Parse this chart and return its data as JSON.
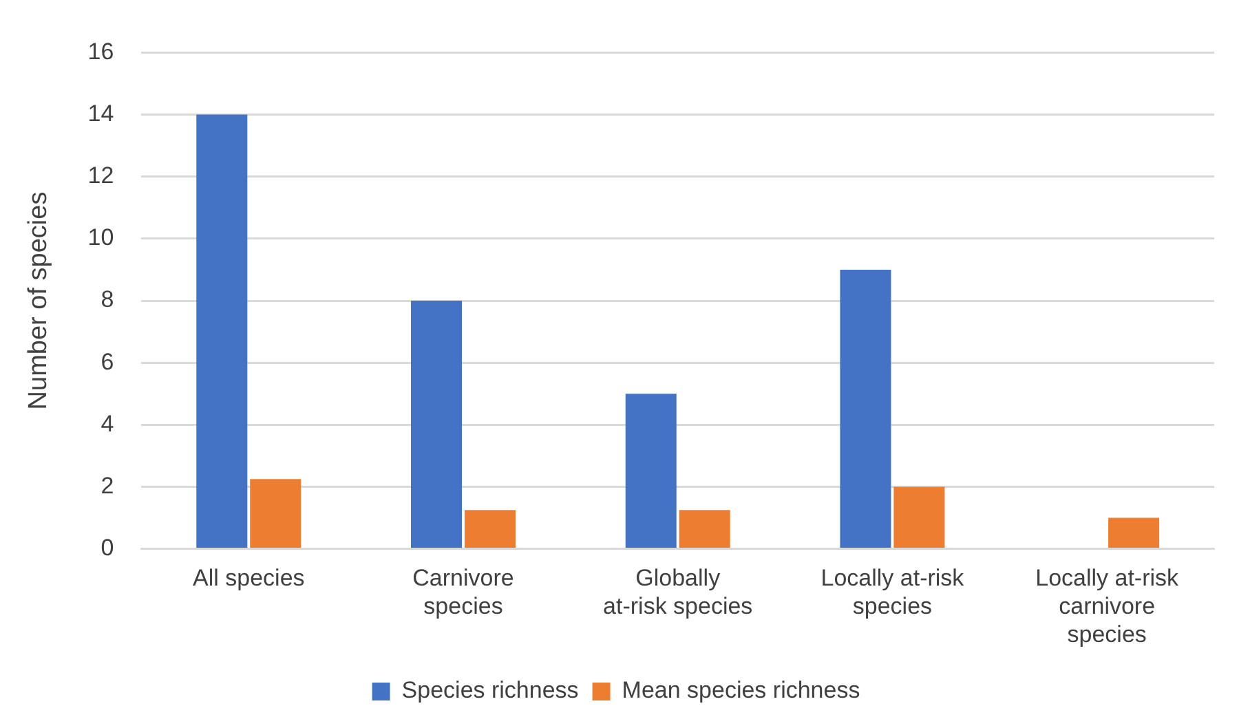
{
  "chart_data": {
    "type": "bar",
    "ylabel": "Number of species",
    "categories": [
      "All species",
      "Carnivore species",
      "Globally at-risk species",
      "Locally at-risk species",
      "Locally at-risk carnivore species"
    ],
    "series": [
      {
        "name": "Species richness",
        "color": "#4472c4",
        "values": [
          14,
          8,
          5,
          9,
          0
        ]
      },
      {
        "name": "Mean species richness",
        "color": "#ed7d31",
        "values": [
          2.25,
          1.25,
          1.25,
          2,
          1
        ]
      }
    ],
    "ylim": [
      0,
      16
    ],
    "yticks": [
      0,
      2,
      4,
      6,
      8,
      10,
      12,
      14,
      16
    ],
    "grid": "y",
    "legend": "bottom"
  }
}
